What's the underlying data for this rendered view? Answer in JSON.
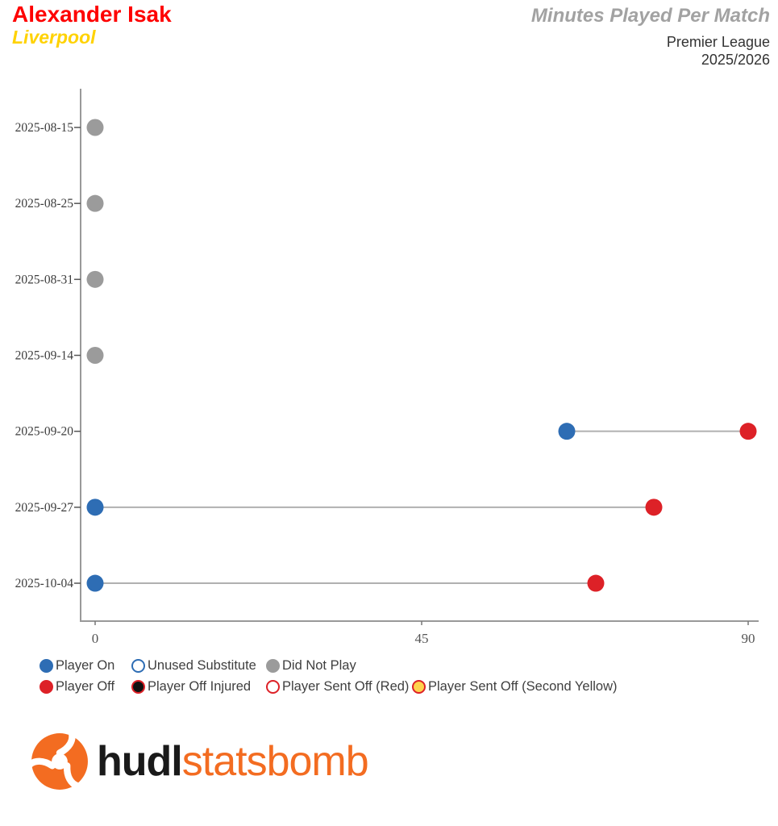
{
  "header": {
    "player": "Alexander Isak",
    "team": "Liverpool",
    "title": "Minutes Played Per Match",
    "competition": "Premier League",
    "season": "2025/2026",
    "player_color": "#fe0000",
    "team_color": "#ffd200",
    "title_color": "#a2a2a2",
    "subtitle_color": "#333333"
  },
  "chart_data": {
    "type": "scatter",
    "variant": "dumbbell-timeline",
    "title": "Minutes Played Per Match",
    "xlabel": "",
    "ylabel": "",
    "xlim": [
      0,
      90
    ],
    "x_ticks": [
      "0",
      "45",
      "90"
    ],
    "x_tick_values": [
      0,
      45,
      90
    ],
    "categories": [
      "2025-08-15",
      "2025-08-25",
      "2025-08-31",
      "2025-09-14",
      "2025-09-20",
      "2025-09-27",
      "2025-10-04"
    ],
    "matches": [
      {
        "date": "2025-08-15",
        "status": "did_not_play",
        "marker_minute": 0
      },
      {
        "date": "2025-08-25",
        "status": "did_not_play",
        "marker_minute": 0
      },
      {
        "date": "2025-08-31",
        "status": "did_not_play",
        "marker_minute": 0
      },
      {
        "date": "2025-09-14",
        "status": "did_not_play",
        "marker_minute": 0
      },
      {
        "date": "2025-09-20",
        "status": "played",
        "minute_on": 65,
        "minute_off": 90
      },
      {
        "date": "2025-09-27",
        "status": "played",
        "minute_on": 0,
        "minute_off": 77
      },
      {
        "date": "2025-10-04",
        "status": "played",
        "minute_on": 0,
        "minute_off": 69
      }
    ],
    "colors": {
      "player_on": "#2e6db4",
      "player_off": "#dd2127",
      "did_not_play": "#9b9b9b",
      "connector_line": "#b0b0b0",
      "axis": "#999999",
      "date_label": "#3d3d3d",
      "xtick_label": "#555555"
    },
    "legend_position": "bottom",
    "grid": false
  },
  "legend": {
    "text_color": "#3f3f3f",
    "rows": [
      [
        {
          "icon": "player-on-marker",
          "label": "Player On",
          "fill": "#2e6db4",
          "stroke": "#2e6db4"
        },
        {
          "icon": "unused-substitute-marker",
          "label": "Unused Substitute",
          "fill": "#ffffff",
          "stroke": "#2e6db4"
        },
        {
          "icon": "did-not-play-marker",
          "label": "Did Not Play",
          "fill": "#9b9b9b",
          "stroke": "#9b9b9b"
        }
      ],
      [
        {
          "icon": "player-off-marker",
          "label": "Player Off",
          "fill": "#dd2127",
          "stroke": "#dd2127"
        },
        {
          "icon": "player-off-injured-marker",
          "label": "Player Off Injured",
          "fill": "#111111",
          "stroke": "#dd2127"
        },
        {
          "icon": "player-sent-off-red-marker",
          "label": "Player Sent Off (Red)",
          "fill": "#ffffff",
          "stroke": "#dd2127"
        },
        {
          "icon": "player-sent-off-second-yellow-marker",
          "label": "Player Sent Off (Second Yellow)",
          "fill": "#ffd24d",
          "stroke": "#dd2127"
        }
      ]
    ]
  },
  "footer": {
    "brand_bold": "hudl",
    "brand_light": "statsbomb",
    "brand_color": "#f36c21"
  }
}
